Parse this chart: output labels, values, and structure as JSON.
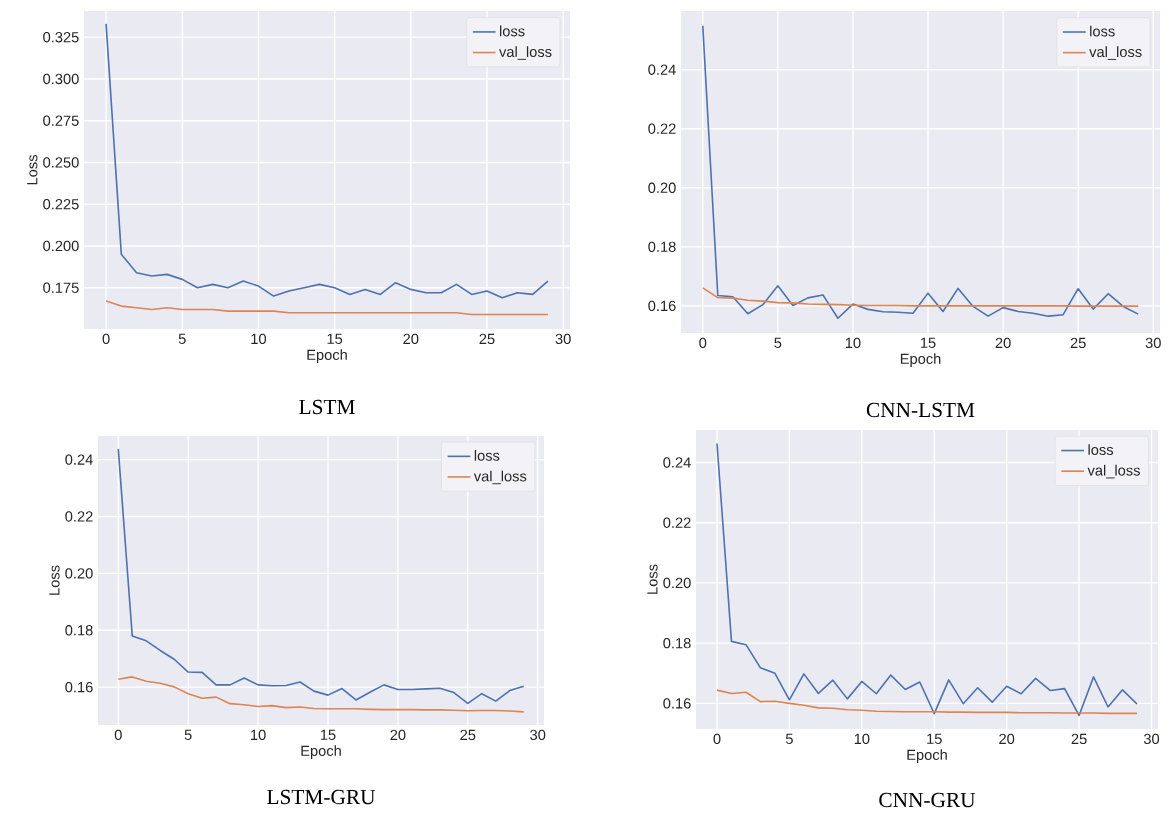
{
  "chart_data": [
    {
      "type": "line",
      "title": "LSTM",
      "xlabel": "Epoch",
      "ylabel": "Loss",
      "grid": true,
      "legend": "top right",
      "x": [
        0,
        1,
        2,
        3,
        4,
        5,
        6,
        7,
        8,
        9,
        10,
        11,
        12,
        13,
        14,
        15,
        16,
        17,
        18,
        19,
        20,
        21,
        22,
        23,
        24,
        25,
        26,
        27,
        28,
        29
      ],
      "xlim": [
        -1.45,
        30.45
      ],
      "xticks": [
        0,
        5,
        10,
        15,
        20,
        25,
        30
      ],
      "ylim": [
        0.1503,
        0.3407
      ],
      "yticks": [
        0.175,
        {
          "value": 0.2,
          "label": "0.200"
        },
        0.225,
        {
          "value": 0.25,
          "label": "0.250"
        },
        0.275,
        {
          "value": 0.3,
          "label": "0.300"
        },
        0.325
      ],
      "series": [
        {
          "name": "loss",
          "color": "#4c72b0",
          "values": [
            0.333,
            0.195,
            0.184,
            0.182,
            0.183,
            0.18,
            0.175,
            0.177,
            0.175,
            0.179,
            0.176,
            0.17,
            0.173,
            0.175,
            0.177,
            0.175,
            0.171,
            0.174,
            0.171,
            0.178,
            0.174,
            0.172,
            0.172,
            0.177,
            0.171,
            0.173,
            0.169,
            0.172,
            0.171,
            0.179
          ]
        },
        {
          "name": "val_loss",
          "color": "#dd8452",
          "values": [
            0.167,
            0.164,
            0.163,
            0.162,
            0.163,
            0.162,
            0.162,
            0.162,
            0.161,
            0.161,
            0.161,
            0.161,
            0.16,
            0.16,
            0.16,
            0.16,
            0.16,
            0.16,
            0.16,
            0.16,
            0.16,
            0.16,
            0.16,
            0.16,
            0.159,
            0.159,
            0.159,
            0.159,
            0.159,
            0.159
          ]
        }
      ]
    },
    {
      "type": "line",
      "title": "CNN-LSTM",
      "xlabel": "Epoch",
      "grid": true,
      "legend": "top right",
      "x": [
        0,
        1,
        2,
        3,
        4,
        5,
        6,
        7,
        8,
        9,
        10,
        11,
        12,
        13,
        14,
        15,
        16,
        17,
        18,
        19,
        20,
        21,
        22,
        23,
        24,
        25,
        26,
        27,
        28,
        29
      ],
      "xlim": [
        -1.45,
        30.45
      ],
      "xticks": [
        0,
        5,
        10,
        15,
        20,
        25,
        30
      ],
      "ylim": [
        0.1508,
        0.2599
      ],
      "yticks": [
        {
          "value": 0.16,
          "label": "0.16"
        },
        {
          "value": 0.18,
          "label": "0.18"
        },
        {
          "value": 0.2,
          "label": "0.20"
        },
        {
          "value": 0.22,
          "label": "0.22"
        },
        {
          "value": 0.24,
          "label": "0.24"
        }
      ],
      "series": [
        {
          "name": "loss",
          "color": "#4c72b0",
          "values": [
            0.2549,
            0.1635,
            0.1631,
            0.1573,
            0.1604,
            0.1668,
            0.1601,
            0.1627,
            0.1637,
            0.1558,
            0.1606,
            0.1588,
            0.158,
            0.1578,
            0.1575,
            0.1643,
            0.1581,
            0.1659,
            0.1598,
            0.1565,
            0.1594,
            0.1581,
            0.1575,
            0.1565,
            0.157,
            0.1658,
            0.1589,
            0.1641,
            0.1598,
            0.1572
          ]
        },
        {
          "name": "val_loss",
          "color": "#dd8452",
          "values": [
            0.1661,
            0.1628,
            0.1626,
            0.1619,
            0.1616,
            0.1611,
            0.161,
            0.1606,
            0.1605,
            0.1604,
            0.1602,
            0.1601,
            0.1601,
            0.1601,
            0.16,
            0.16,
            0.16,
            0.16,
            0.16,
            0.16,
            0.16,
            0.16,
            0.16,
            0.16,
            0.16,
            0.1599,
            0.1599,
            0.1599,
            0.1599,
            0.1599
          ]
        }
      ]
    },
    {
      "type": "line",
      "title": "LSTM-GRU",
      "xlabel": "Epoch",
      "ylabel": "Loss",
      "grid": true,
      "legend": "top right",
      "x": [
        0,
        1,
        2,
        3,
        4,
        5,
        6,
        7,
        8,
        9,
        10,
        11,
        12,
        13,
        14,
        15,
        16,
        17,
        18,
        19,
        20,
        21,
        22,
        23,
        24,
        25,
        26,
        27,
        28,
        29
      ],
      "xlim": [
        -1.45,
        30.45
      ],
      "xticks": [
        0,
        5,
        10,
        15,
        20,
        25,
        30
      ],
      "ylim": [
        0.1467,
        0.2483
      ],
      "yticks": [
        {
          "value": 0.16,
          "label": "0.16"
        },
        {
          "value": 0.18,
          "label": "0.18"
        },
        {
          "value": 0.2,
          "label": "0.20"
        },
        {
          "value": 0.22,
          "label": "0.22"
        },
        {
          "value": 0.24,
          "label": "0.24"
        }
      ],
      "series": [
        {
          "name": "loss",
          "color": "#4c72b0",
          "values": [
            0.2437,
            0.178,
            0.1763,
            0.1729,
            0.1698,
            0.1653,
            0.1652,
            0.1608,
            0.1608,
            0.1632,
            0.1608,
            0.1605,
            0.1606,
            0.1618,
            0.1586,
            0.1572,
            0.1595,
            0.1555,
            0.1582,
            0.1608,
            0.1592,
            0.1592,
            0.1594,
            0.1596,
            0.1581,
            0.1543,
            0.1577,
            0.1551,
            0.1588,
            0.1603
          ]
        },
        {
          "name": "val_loss",
          "color": "#dd8452",
          "values": [
            0.1628,
            0.1636,
            0.1621,
            0.1614,
            0.1601,
            0.1577,
            0.1561,
            0.1565,
            0.1542,
            0.1538,
            0.1532,
            0.1535,
            0.1528,
            0.153,
            0.1525,
            0.1524,
            0.1524,
            0.1524,
            0.1522,
            0.1521,
            0.1521,
            0.1521,
            0.152,
            0.152,
            0.1519,
            0.1517,
            0.1518,
            0.1518,
            0.1516,
            0.1513
          ]
        }
      ]
    },
    {
      "type": "line",
      "title": "CNN-GRU",
      "xlabel": "Epoch",
      "ylabel": "Loss",
      "grid": true,
      "legend": "top right",
      "x": [
        0,
        1,
        2,
        3,
        4,
        5,
        6,
        7,
        8,
        9,
        10,
        11,
        12,
        13,
        14,
        15,
        16,
        17,
        18,
        19,
        20,
        21,
        22,
        23,
        24,
        25,
        26,
        27,
        28,
        29
      ],
      "xlim": [
        -1.45,
        30.45
      ],
      "xticks": [
        0,
        5,
        10,
        15,
        20,
        25,
        30
      ],
      "ylim": [
        0.1515,
        0.2508
      ],
      "yticks": [
        {
          "value": 0.16,
          "label": "0.16"
        },
        {
          "value": 0.18,
          "label": "0.18"
        },
        {
          "value": 0.2,
          "label": "0.20"
        },
        {
          "value": 0.22,
          "label": "0.22"
        },
        {
          "value": 0.24,
          "label": "0.24"
        }
      ],
      "series": [
        {
          "name": "loss",
          "color": "#4c72b0",
          "values": [
            0.2463,
            0.1806,
            0.1795,
            0.1718,
            0.17,
            0.1612,
            0.1698,
            0.1633,
            0.1677,
            0.1615,
            0.1673,
            0.1632,
            0.1694,
            0.1646,
            0.1671,
            0.1566,
            0.1678,
            0.1599,
            0.1652,
            0.1604,
            0.1657,
            0.1632,
            0.1683,
            0.1643,
            0.1649,
            0.156,
            0.1688,
            0.1588,
            0.1645,
            0.1598
          ]
        },
        {
          "name": "val_loss",
          "color": "#dd8452",
          "values": [
            0.1644,
            0.1633,
            0.1637,
            0.1606,
            0.1607,
            0.16,
            0.1594,
            0.1585,
            0.1584,
            0.1579,
            0.1577,
            0.1574,
            0.1573,
            0.1572,
            0.1572,
            0.1572,
            0.1571,
            0.1571,
            0.157,
            0.157,
            0.157,
            0.1569,
            0.1569,
            0.1569,
            0.1568,
            0.1568,
            0.1568,
            0.1567,
            0.1567,
            0.1567
          ]
        }
      ]
    }
  ]
}
